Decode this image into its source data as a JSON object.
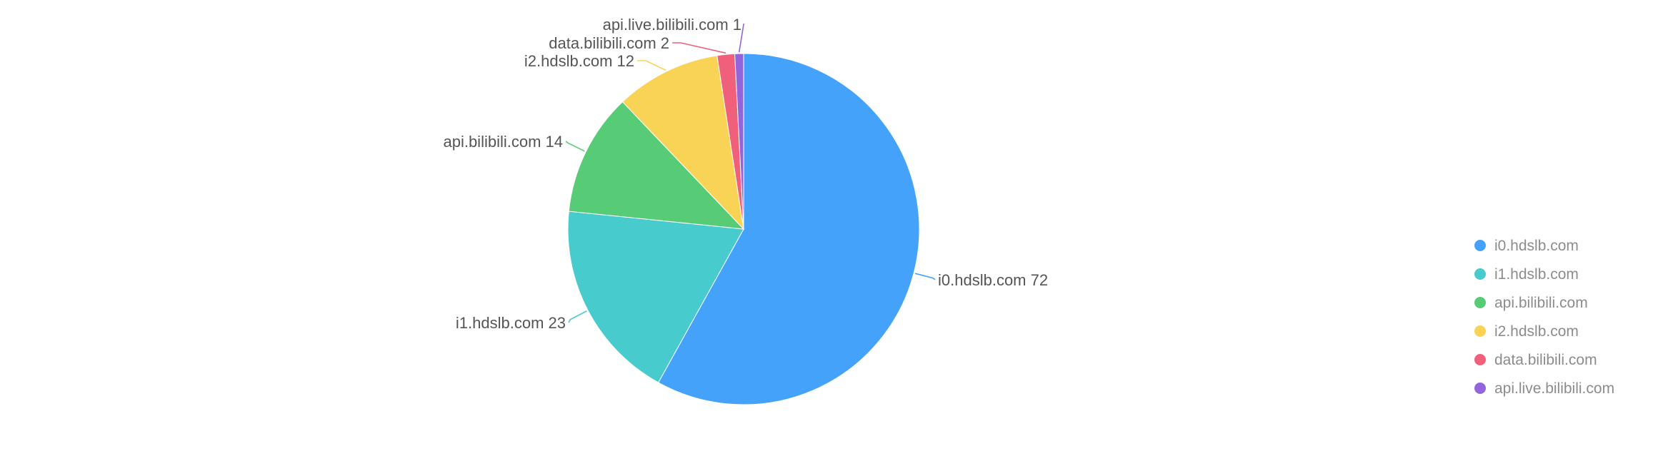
{
  "chart_data": {
    "type": "pie",
    "categories": [
      "i0.hdslb.com",
      "i1.hdslb.com",
      "api.bilibili.com",
      "i2.hdslb.com",
      "data.bilibili.com",
      "api.live.bilibili.com"
    ],
    "values": [
      72,
      23,
      14,
      12,
      2,
      1
    ],
    "colors": [
      "#45a2fa",
      "#47cbcd",
      "#58cb76",
      "#f9d355",
      "#f0607a",
      "#9265dd"
    ],
    "label_color": "#555555",
    "legend_text_color": "#8c8c8c",
    "legend_position": "right",
    "start_angle": "12 o'clock",
    "direction": "clockwise",
    "title": ""
  }
}
